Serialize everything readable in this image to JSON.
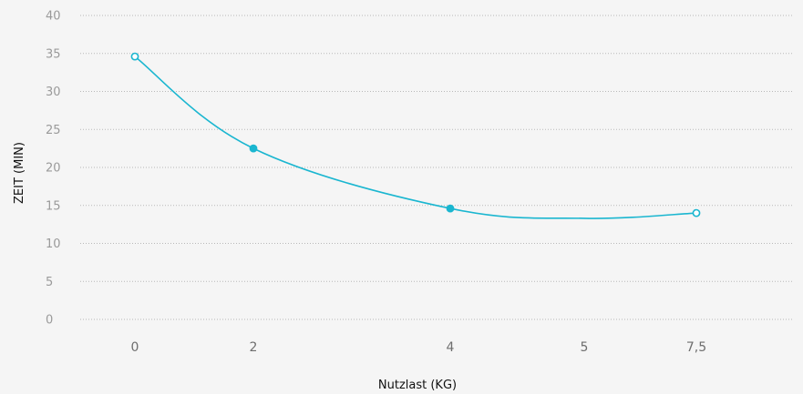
{
  "chart_data": {
    "type": "line",
    "x": [
      "0",
      "2",
      "4",
      "5",
      "7,5"
    ],
    "x_values": [
      0,
      2,
      4,
      5,
      7.5
    ],
    "series": [
      {
        "values": [
          34.6,
          22.5,
          14.6,
          null,
          14.0
        ],
        "color": "#1ab6d0",
        "markers": [
          "hollow",
          "filled",
          "filled",
          "none",
          "hollow"
        ]
      }
    ],
    "xlabel": "Nutzlast (KG)",
    "ylabel": "ZEIT (MIN)",
    "ylim": [
      0,
      40
    ],
    "yticks": [
      "0",
      "5",
      "10",
      "15",
      "20",
      "25",
      "30",
      "35",
      "40"
    ],
    "grid": true,
    "curve": "smooth"
  }
}
